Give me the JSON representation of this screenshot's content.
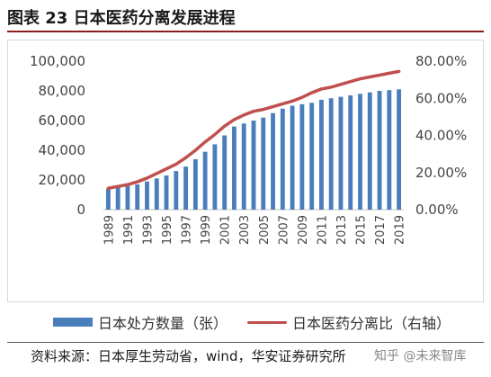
{
  "header": {
    "title": "图表 23 日本医药分离发展进程"
  },
  "chart_data": {
    "type": "bar+line",
    "categories": [
      "1989",
      "1990",
      "1991",
      "1992",
      "1993",
      "1994",
      "1995",
      "1996",
      "1997",
      "1998",
      "1999",
      "2000",
      "2001",
      "2002",
      "2003",
      "2004",
      "2005",
      "2006",
      "2007",
      "2008",
      "2009",
      "2010",
      "2011",
      "2012",
      "2013",
      "2014",
      "2015",
      "2016",
      "2017",
      "2018",
      "2019"
    ],
    "x_tick_labels": [
      "1989",
      "1991",
      "1993",
      "1995",
      "1997",
      "1999",
      "2001",
      "2003",
      "2005",
      "2007",
      "2009",
      "2011",
      "2013",
      "2015",
      "2017",
      "2019"
    ],
    "series": [
      {
        "name": "日本处方数量（张）",
        "type": "bar",
        "axis": "left",
        "color": "#4a7ebb",
        "values": [
          14000,
          15000,
          16000,
          17000,
          19000,
          21000,
          23000,
          26000,
          29000,
          34000,
          39000,
          44000,
          50000,
          56000,
          58000,
          60000,
          62000,
          65000,
          68000,
          70000,
          71000,
          72000,
          74000,
          75000,
          76000,
          77000,
          78000,
          79000,
          80000,
          80500,
          81000
        ]
      },
      {
        "name": "日本医药分离比（右轴）",
        "type": "line",
        "axis": "right",
        "color": "#c0504d",
        "values": [
          11.5,
          12.5,
          13.5,
          15.0,
          17.0,
          19.5,
          22.0,
          24.5,
          28.0,
          32.0,
          36.5,
          40.5,
          45.0,
          48.5,
          51.0,
          53.0,
          54.0,
          55.5,
          57.0,
          58.5,
          60.5,
          63.0,
          65.0,
          66.0,
          67.5,
          69.0,
          70.5,
          71.5,
          72.5,
          73.5,
          74.5
        ]
      }
    ],
    "y_left": {
      "min": 0,
      "max": 100000,
      "ticks": [
        "0",
        "20,000",
        "40,000",
        "60,000",
        "80,000",
        "100,000"
      ]
    },
    "y_right": {
      "min": 0,
      "max": 80,
      "ticks": [
        "0.00%",
        "20.00%",
        "40.00%",
        "60.00%",
        "80.00%"
      ]
    },
    "grid": false,
    "legend_position": "bottom"
  },
  "footer": {
    "source": "资料来源：日本厚生劳动省，wind，华安证券研究所",
    "watermark": "知乎 @未来智库"
  }
}
